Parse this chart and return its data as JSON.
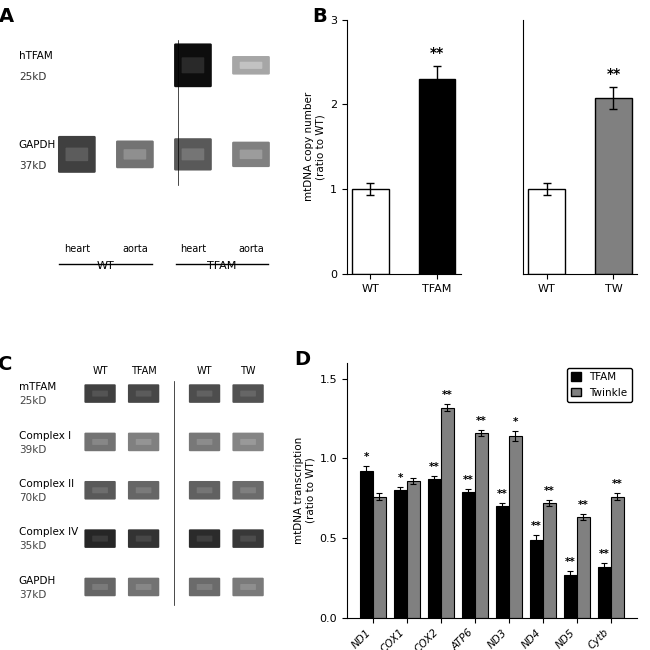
{
  "panel_A": {
    "label": "A",
    "wb_lanes": 4,
    "rows": [
      {
        "label": "hTFAM\n25kD",
        "intensities": [
          0.0,
          0.0,
          0.95,
          0.35
        ]
      },
      {
        "label": "GAPDH\n37kD",
        "intensities": [
          0.75,
          0.55,
          0.65,
          0.5
        ]
      }
    ],
    "x_labels": [
      "heart",
      "aorta",
      "heart",
      "aorta"
    ],
    "group_labels": [
      "WT",
      "TFAM"
    ],
    "group_positions": [
      0.5,
      2.5
    ]
  },
  "panel_B_left": {
    "categories": [
      "WT",
      "TFAM"
    ],
    "values": [
      1.0,
      2.3
    ],
    "errors": [
      0.07,
      0.15
    ],
    "bar_colors": [
      "white",
      "black"
    ],
    "significance": [
      "",
      "**"
    ],
    "ylabel": "mtDNA copy number\n(ratio to WT)",
    "ylim": [
      0,
      3
    ],
    "yticks": [
      0,
      1,
      2,
      3
    ]
  },
  "panel_B_right": {
    "categories": [
      "WT",
      "TW"
    ],
    "values": [
      1.0,
      2.07
    ],
    "errors": [
      0.07,
      0.13
    ],
    "bar_colors": [
      "white",
      "#808080"
    ],
    "significance": [
      "",
      "**"
    ],
    "ylim": [
      0,
      3
    ],
    "yticks": [
      0,
      1,
      2,
      3
    ]
  },
  "panel_C": {
    "label": "C",
    "columns": [
      "WT",
      "TFAM",
      "WT",
      "TW"
    ],
    "rows": [
      {
        "label": "mTFAM\n25kD",
        "intensities": [
          0.75,
          0.72,
          0.7,
          0.68
        ]
      },
      {
        "label": "Complex I\n39kD",
        "intensities": [
          0.55,
          0.5,
          0.53,
          0.48
        ]
      },
      {
        "label": "Complex II\n70kD",
        "intensities": [
          0.65,
          0.6,
          0.62,
          0.58
        ]
      },
      {
        "label": "Complex IV\n35kD",
        "intensities": [
          0.85,
          0.8,
          0.83,
          0.78
        ]
      },
      {
        "label": "GAPDH\n37kD",
        "intensities": [
          0.6,
          0.55,
          0.58,
          0.52
        ]
      }
    ]
  },
  "panel_D": {
    "label": "D",
    "categories": [
      "ND1",
      "COX1",
      "COX2",
      "ATP6",
      "ND3",
      "ND4",
      "ND5",
      "Cytb"
    ],
    "tfam_values": [
      0.92,
      0.8,
      0.87,
      0.79,
      0.7,
      0.49,
      0.27,
      0.32
    ],
    "tfam_errors": [
      0.03,
      0.02,
      0.02,
      0.02,
      0.02,
      0.03,
      0.02,
      0.02
    ],
    "twinkle_values": [
      0.76,
      0.86,
      1.32,
      1.16,
      1.14,
      0.72,
      0.63,
      0.76
    ],
    "twinkle_errors": [
      0.02,
      0.02,
      0.02,
      0.02,
      0.03,
      0.02,
      0.02,
      0.02
    ],
    "tfam_sig": [
      "*",
      "*",
      "**",
      "**",
      "**",
      "**",
      "**",
      "**"
    ],
    "twinkle_sig": [
      "",
      "",
      "**",
      "**",
      "*",
      "**",
      "**",
      "**"
    ],
    "ylabel": "mtDNA transcription\n(ratio to WT)",
    "ylim": [
      0,
      1.6
    ],
    "yticks": [
      0,
      0.5,
      1.0,
      1.5
    ],
    "legend_labels": [
      "TFAM",
      "Twinkle"
    ],
    "legend_colors": [
      "black",
      "#808080"
    ]
  },
  "background_color": "white",
  "figure_size": [
    6.5,
    6.5
  ],
  "dpi": 100
}
